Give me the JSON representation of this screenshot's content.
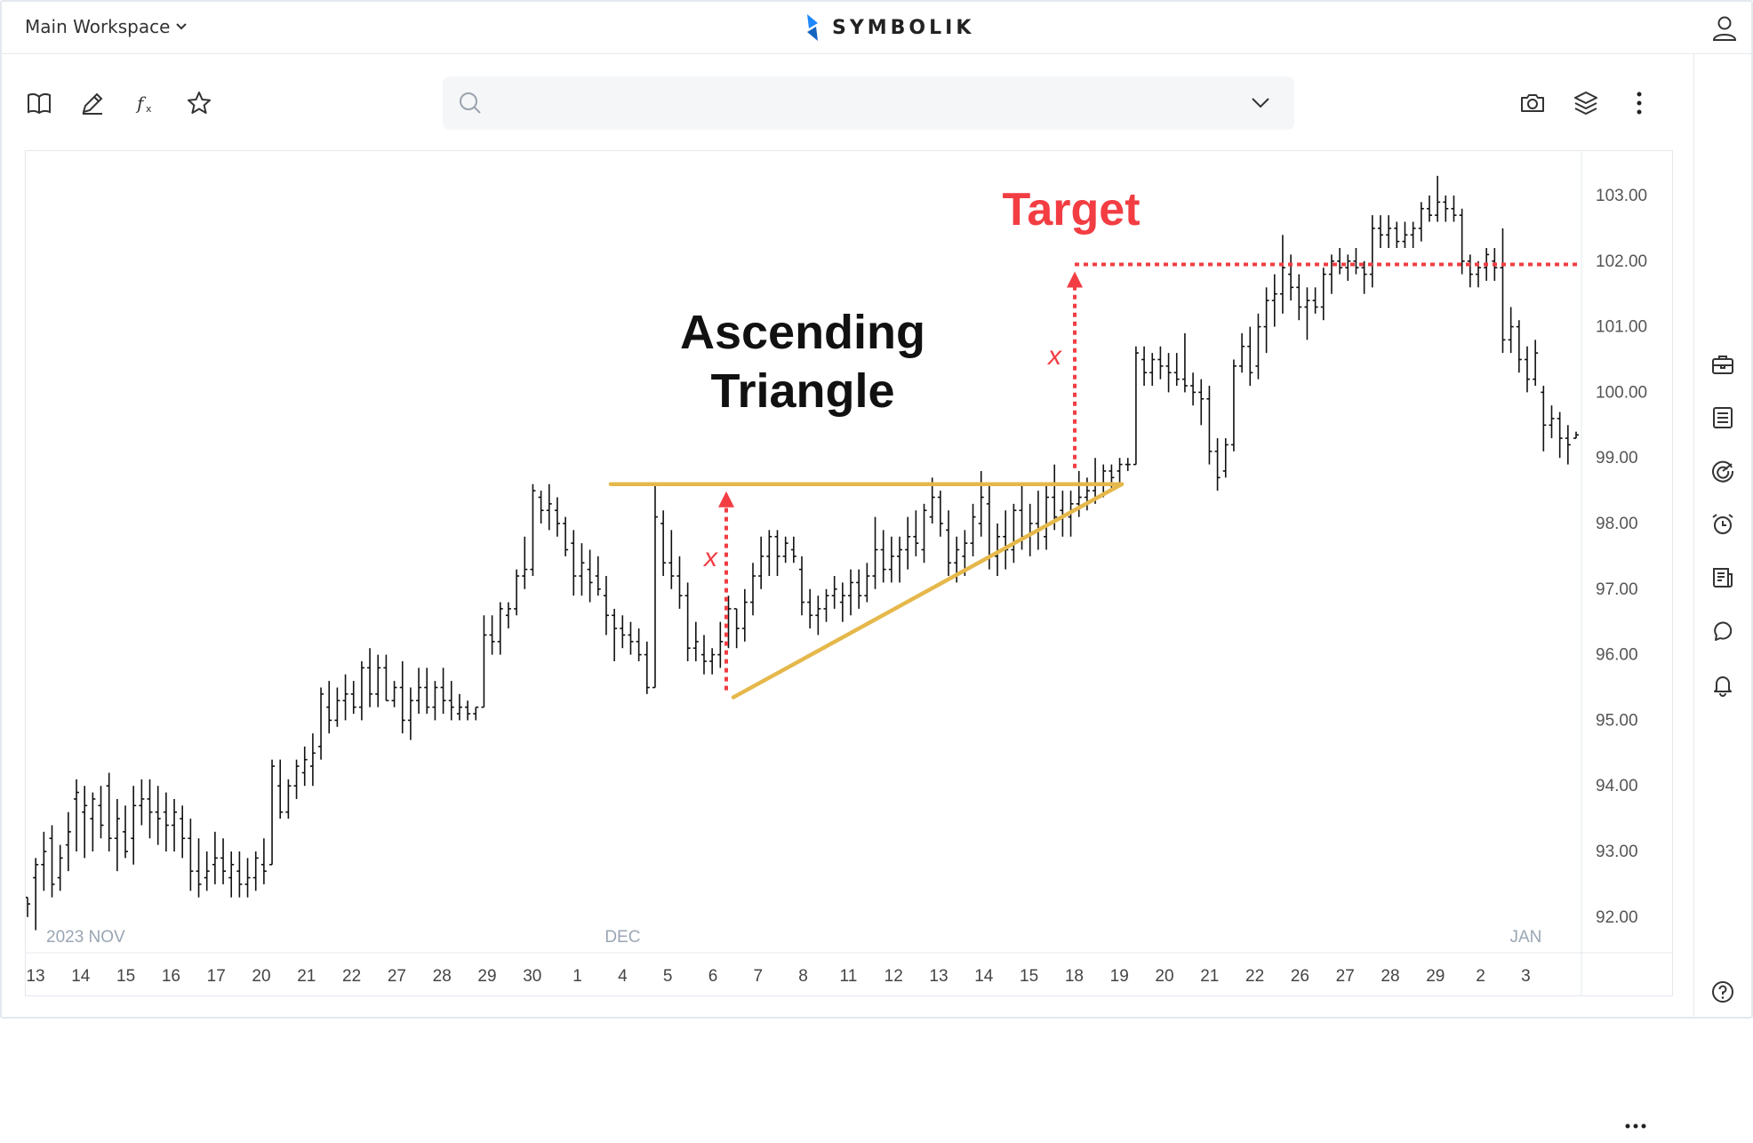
{
  "header": {
    "workspace_label": "Main Workspace",
    "brand": "SYMBOLIK",
    "brand_color": "#2979ff"
  },
  "toolbar": {
    "left_icons": [
      "book-icon",
      "pencil-icon",
      "function-icon",
      "star-icon"
    ],
    "right_icons": [
      "camera-icon",
      "layers-icon",
      "more-vertical-icon"
    ]
  },
  "search": {
    "placeholder": "",
    "value": ""
  },
  "right_sidebar_icons": [
    "briefcase-icon",
    "table-icon",
    "radar-icon",
    "alarm-clock-icon",
    "news-icon",
    "chat-icon",
    "bell-icon",
    "help-icon"
  ],
  "chart_data": {
    "type": "ohlc",
    "title": "",
    "price_axis": {
      "min": 91.4,
      "max": 103.6,
      "ticks": [
        "103.00",
        "102.00",
        "101.00",
        "100.00",
        "99.00",
        "98.00",
        "97.00",
        "96.00",
        "95.00",
        "94.00",
        "93.00",
        "92.00"
      ]
    },
    "month_labels": [
      {
        "text": "2023 NOV",
        "day_index": 0
      },
      {
        "text": "DEC",
        "day_index": 13
      },
      {
        "text": "JAN",
        "day_index": 33
      }
    ],
    "dates": [
      "13",
      "14",
      "15",
      "16",
      "17",
      "20",
      "21",
      "22",
      "27",
      "28",
      "29",
      "30",
      "1",
      "4",
      "5",
      "6",
      "7",
      "8",
      "11",
      "12",
      "13",
      "14",
      "15",
      "18",
      "19",
      "20",
      "21",
      "22",
      "26",
      "27",
      "28",
      "29",
      "2",
      "3"
    ],
    "bars": [
      [
        92.3,
        92.3,
        92.0,
        92.2
      ],
      [
        92.6,
        92.9,
        91.8,
        92.8
      ],
      [
        92.8,
        93.3,
        92.4,
        93.0
      ],
      [
        93.2,
        93.4,
        92.3,
        92.5
      ],
      [
        92.6,
        93.1,
        92.4,
        92.9
      ],
      [
        93.1,
        93.6,
        92.7,
        93.3
      ],
      [
        93.8,
        94.1,
        93.0,
        93.9
      ],
      [
        93.6,
        94.0,
        92.9,
        93.7
      ],
      [
        93.5,
        93.9,
        93.0,
        93.8
      ],
      [
        93.7,
        94.0,
        93.2,
        93.4
      ],
      [
        94.0,
        94.2,
        93.0,
        93.2
      ],
      [
        93.2,
        93.8,
        92.7,
        93.5
      ],
      [
        93.3,
        93.7,
        92.9,
        93.0
      ],
      [
        93.2,
        94.0,
        92.8,
        93.7
      ],
      [
        93.7,
        94.1,
        93.4,
        93.8
      ],
      [
        93.8,
        94.1,
        93.2,
        93.6
      ],
      [
        93.6,
        94.0,
        93.1,
        93.5
      ],
      [
        93.6,
        93.9,
        93.0,
        93.4
      ],
      [
        93.4,
        93.8,
        93.0,
        93.6
      ],
      [
        93.5,
        93.7,
        92.9,
        93.2
      ],
      [
        93.2,
        93.5,
        92.4,
        92.7
      ],
      [
        92.7,
        93.2,
        92.3,
        92.5
      ],
      [
        92.6,
        93.0,
        92.4,
        92.7
      ],
      [
        92.8,
        93.3,
        92.5,
        92.9
      ],
      [
        92.9,
        93.2,
        92.5,
        92.7
      ],
      [
        92.6,
        93.0,
        92.3,
        92.8
      ],
      [
        92.7,
        93.0,
        92.3,
        92.5
      ],
      [
        92.5,
        92.9,
        92.3,
        92.6
      ],
      [
        92.6,
        93.0,
        92.4,
        92.9
      ],
      [
        92.8,
        93.2,
        92.5,
        92.7
      ],
      [
        92.8,
        94.4,
        92.8,
        94.3
      ],
      [
        94.0,
        94.4,
        93.5,
        93.6
      ],
      [
        93.6,
        94.1,
        93.5,
        94.0
      ],
      [
        94.0,
        94.4,
        93.8,
        94.3
      ],
      [
        94.2,
        94.6,
        94.0,
        94.4
      ],
      [
        94.3,
        94.8,
        94.0,
        94.5
      ],
      [
        94.6,
        95.5,
        94.4,
        95.4
      ],
      [
        95.2,
        95.6,
        94.8,
        95.0
      ],
      [
        95.0,
        95.5,
        94.9,
        95.3
      ],
      [
        95.3,
        95.7,
        95.0,
        95.4
      ],
      [
        95.4,
        95.6,
        95.1,
        95.2
      ],
      [
        95.2,
        95.9,
        95.0,
        95.8
      ],
      [
        95.8,
        96.1,
        95.2,
        95.4
      ],
      [
        95.4,
        96.0,
        95.2,
        95.8
      ],
      [
        95.8,
        96.0,
        95.3,
        95.3
      ],
      [
        95.3,
        95.6,
        95.2,
        95.5
      ],
      [
        95.5,
        95.9,
        94.8,
        95.0
      ],
      [
        95.0,
        95.5,
        94.7,
        95.3
      ],
      [
        95.3,
        95.8,
        95.1,
        95.5
      ],
      [
        95.5,
        95.8,
        95.1,
        95.2
      ],
      [
        95.2,
        95.6,
        95.0,
        95.5
      ],
      [
        95.5,
        95.8,
        95.1,
        95.3
      ],
      [
        95.3,
        95.6,
        95.0,
        95.2
      ],
      [
        95.1,
        95.4,
        95.0,
        95.2
      ],
      [
        95.2,
        95.3,
        95.0,
        95.1
      ],
      [
        95.1,
        95.2,
        95.0,
        95.2
      ],
      [
        95.2,
        96.6,
        95.2,
        96.3
      ],
      [
        96.3,
        96.6,
        96.0,
        96.2
      ],
      [
        96.2,
        96.8,
        96.0,
        96.7
      ],
      [
        96.6,
        96.8,
        96.4,
        96.7
      ],
      [
        96.7,
        97.3,
        96.6,
        97.2
      ],
      [
        97.2,
        97.8,
        97.0,
        97.3
      ],
      [
        97.3,
        98.6,
        97.2,
        98.5
      ],
      [
        98.4,
        98.5,
        98.0,
        98.2
      ],
      [
        98.2,
        98.6,
        97.9,
        98.3
      ],
      [
        98.2,
        98.4,
        97.8,
        98.0
      ],
      [
        98.0,
        98.1,
        97.5,
        97.6
      ],
      [
        97.7,
        97.9,
        96.9,
        97.2
      ],
      [
        97.2,
        97.7,
        96.9,
        97.4
      ],
      [
        97.3,
        97.6,
        96.8,
        97.1
      ],
      [
        97.2,
        97.5,
        96.9,
        97.0
      ],
      [
        96.9,
        97.2,
        96.3,
        96.6
      ],
      [
        96.6,
        96.7,
        95.9,
        96.4
      ],
      [
        96.4,
        96.6,
        96.1,
        96.3
      ],
      [
        96.3,
        96.5,
        96.0,
        96.2
      ],
      [
        96.2,
        96.4,
        95.9,
        96.0
      ],
      [
        96.0,
        96.2,
        95.4,
        95.5
      ],
      [
        95.5,
        98.6,
        95.5,
        98.1
      ],
      [
        98.0,
        98.2,
        97.2,
        97.4
      ],
      [
        97.4,
        97.9,
        97.0,
        97.2
      ],
      [
        97.2,
        97.5,
        96.7,
        96.9
      ],
      [
        96.9,
        97.1,
        95.9,
        96.1
      ],
      [
        96.1,
        96.5,
        95.9,
        96.2
      ],
      [
        96.0,
        96.3,
        95.7,
        95.9
      ],
      [
        95.9,
        96.1,
        95.7,
        96.0
      ],
      [
        96.0,
        96.5,
        95.8,
        96.2
      ],
      [
        96.3,
        96.9,
        96.1,
        96.7
      ],
      [
        96.7,
        96.7,
        96.1,
        96.4
      ],
      [
        96.4,
        97.0,
        96.2,
        96.8
      ],
      [
        96.8,
        97.4,
        96.6,
        97.2
      ],
      [
        97.2,
        97.8,
        97.0,
        97.5
      ],
      [
        97.5,
        97.9,
        97.2,
        97.8
      ],
      [
        97.8,
        97.9,
        97.2,
        97.5
      ],
      [
        97.5,
        97.8,
        97.4,
        97.7
      ],
      [
        97.6,
        97.8,
        97.4,
        97.5
      ],
      [
        97.3,
        97.5,
        96.6,
        96.8
      ],
      [
        96.8,
        97.0,
        96.4,
        96.6
      ],
      [
        96.6,
        96.9,
        96.3,
        96.7
      ],
      [
        96.7,
        97.0,
        96.5,
        96.9
      ],
      [
        96.9,
        97.2,
        96.7,
        97.0
      ],
      [
        96.8,
        97.1,
        96.5,
        96.9
      ],
      [
        96.9,
        97.3,
        96.6,
        97.1
      ],
      [
        97.1,
        97.3,
        96.7,
        96.9
      ],
      [
        96.9,
        97.4,
        96.8,
        97.2
      ],
      [
        97.2,
        98.1,
        97.0,
        97.6
      ],
      [
        97.6,
        97.9,
        97.1,
        97.3
      ],
      [
        97.3,
        97.8,
        97.1,
        97.5
      ],
      [
        97.5,
        97.8,
        97.1,
        97.6
      ],
      [
        97.6,
        98.1,
        97.3,
        97.8
      ],
      [
        97.8,
        98.2,
        97.5,
        97.7
      ],
      [
        97.6,
        98.3,
        97.4,
        98.2
      ],
      [
        98.1,
        98.7,
        98.0,
        98.4
      ],
      [
        98.4,
        98.5,
        97.8,
        98.0
      ],
      [
        97.9,
        98.2,
        97.2,
        97.4
      ],
      [
        97.4,
        97.8,
        97.1,
        97.6
      ],
      [
        97.5,
        97.9,
        97.2,
        97.7
      ],
      [
        97.7,
        98.3,
        97.5,
        98.1
      ],
      [
        98.0,
        98.8,
        97.8,
        98.4
      ],
      [
        98.3,
        98.6,
        97.3,
        97.5
      ],
      [
        97.5,
        98.0,
        97.2,
        97.8
      ],
      [
        97.8,
        98.2,
        97.3,
        97.6
      ],
      [
        97.6,
        98.3,
        97.4,
        98.2
      ],
      [
        98.2,
        98.6,
        97.6,
        97.8
      ],
      [
        97.8,
        98.3,
        97.5,
        98.0
      ],
      [
        98.0,
        98.5,
        97.6,
        97.9
      ],
      [
        97.8,
        98.6,
        97.6,
        98.4
      ],
      [
        98.4,
        98.9,
        97.9,
        98.1
      ],
      [
        98.2,
        98.5,
        97.8,
        98.1
      ],
      [
        98.1,
        98.5,
        97.8,
        98.3
      ],
      [
        98.3,
        98.8,
        98.1,
        98.4
      ],
      [
        98.4,
        98.7,
        98.2,
        98.5
      ],
      [
        98.5,
        99.0,
        98.3,
        98.6
      ],
      [
        98.6,
        98.9,
        98.4,
        98.8
      ],
      [
        98.8,
        98.9,
        98.5,
        98.7
      ],
      [
        98.8,
        99.0,
        98.6,
        98.9
      ],
      [
        98.9,
        99.0,
        98.8,
        98.9
      ],
      [
        98.9,
        100.7,
        98.9,
        100.6
      ],
      [
        100.5,
        100.7,
        100.1,
        100.3
      ],
      [
        100.3,
        100.6,
        100.1,
        100.5
      ],
      [
        100.5,
        100.7,
        100.2,
        100.4
      ],
      [
        100.4,
        100.6,
        100.0,
        100.3
      ],
      [
        100.3,
        100.6,
        100.1,
        100.2
      ],
      [
        100.2,
        100.9,
        100.0,
        100.1
      ],
      [
        100.1,
        100.3,
        99.8,
        100.0
      ],
      [
        100.0,
        100.2,
        99.5,
        99.9
      ],
      [
        99.9,
        100.1,
        98.9,
        99.1
      ],
      [
        99.1,
        99.3,
        98.5,
        98.7
      ],
      [
        98.8,
        99.3,
        98.7,
        99.2
      ],
      [
        99.2,
        100.5,
        99.1,
        100.4
      ],
      [
        100.4,
        100.9,
        100.3,
        100.7
      ],
      [
        100.7,
        101.0,
        100.1,
        100.3
      ],
      [
        100.4,
        101.2,
        100.2,
        101.0
      ],
      [
        101.0,
        101.6,
        100.6,
        101.4
      ],
      [
        101.4,
        101.8,
        101.0,
        101.5
      ],
      [
        101.5,
        102.4,
        101.2,
        101.9
      ],
      [
        101.8,
        102.1,
        101.4,
        101.6
      ],
      [
        101.6,
        101.8,
        101.1,
        101.3
      ],
      [
        101.3,
        101.6,
        100.8,
        101.4
      ],
      [
        101.4,
        101.6,
        101.2,
        101.3
      ],
      [
        101.3,
        101.9,
        101.1,
        101.8
      ],
      [
        101.8,
        102.1,
        101.5,
        102.0
      ],
      [
        102.0,
        102.2,
        101.8,
        101.9
      ],
      [
        101.9,
        102.1,
        101.7,
        102.0
      ],
      [
        102.0,
        102.2,
        101.8,
        101.9
      ],
      [
        101.9,
        102.0,
        101.5,
        101.8
      ],
      [
        101.8,
        102.7,
        101.6,
        102.5
      ],
      [
        102.5,
        102.7,
        102.2,
        102.4
      ],
      [
        102.4,
        102.7,
        102.2,
        102.5
      ],
      [
        102.5,
        102.6,
        102.2,
        102.3
      ],
      [
        102.3,
        102.6,
        102.2,
        102.4
      ],
      [
        102.4,
        102.6,
        102.2,
        102.5
      ],
      [
        102.5,
        102.9,
        102.3,
        102.8
      ],
      [
        102.8,
        103.0,
        102.6,
        102.7
      ],
      [
        102.7,
        103.3,
        102.6,
        102.9
      ],
      [
        102.9,
        103.0,
        102.6,
        102.8
      ],
      [
        102.8,
        103.0,
        102.6,
        102.7
      ],
      [
        102.7,
        102.8,
        101.8,
        102.0
      ],
      [
        102.0,
        102.1,
        101.6,
        101.8
      ],
      [
        101.8,
        102.0,
        101.6,
        101.9
      ],
      [
        101.9,
        102.2,
        101.7,
        102.1
      ],
      [
        102.0,
        102.2,
        101.7,
        101.9
      ],
      [
        101.9,
        102.5,
        100.6,
        100.8
      ],
      [
        100.8,
        101.3,
        100.6,
        101.0
      ],
      [
        101.0,
        101.1,
        100.3,
        100.5
      ],
      [
        100.5,
        100.7,
        100.0,
        100.2
      ],
      [
        100.2,
        100.8,
        100.1,
        100.6
      ],
      [
        100.0,
        100.1,
        99.1,
        99.5
      ],
      [
        99.5,
        99.8,
        99.3,
        99.6
      ],
      [
        99.6,
        99.7,
        99.0,
        99.3
      ],
      [
        99.3,
        99.5,
        98.9,
        99.2
      ],
      [
        99.3,
        99.4,
        99.3,
        99.35
      ]
    ],
    "annotations": {
      "title_line1": "Ascending",
      "title_line2": "Triangle",
      "target_label": "Target",
      "x_label": "x",
      "target_price": 101.95,
      "resistance_price": 98.6,
      "support_low_price": 95.35,
      "annotation_color": "#f23d43",
      "trendline_color": "#e5b84b"
    }
  }
}
